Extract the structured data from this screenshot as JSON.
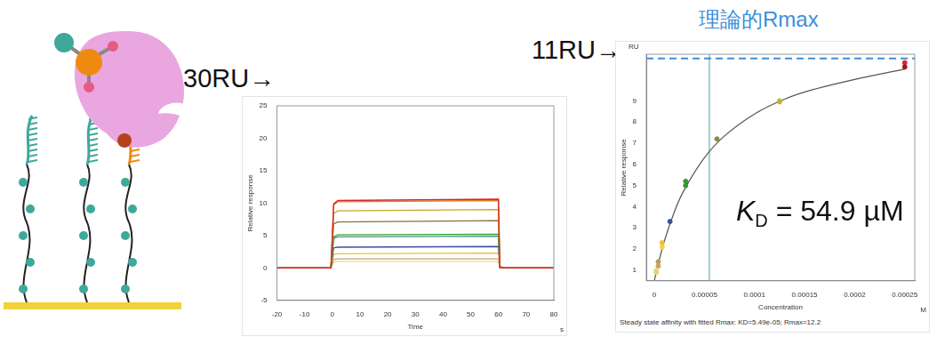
{
  "annotations": {
    "ligand_level": "30RU→",
    "rmax_arrow": "11RU→",
    "rmax_label": "理論的Rmax",
    "kd": {
      "symbol": "K",
      "subscript": "D",
      "text": " = 54.9 µM"
    }
  },
  "chart_data": [
    {
      "type": "line",
      "x_label": "Time",
      "x_unit": "s",
      "y_label": "Relative response",
      "xlim": [
        -20,
        80
      ],
      "xticks": [
        -20,
        -10,
        0,
        10,
        20,
        30,
        40,
        50,
        60,
        70,
        80
      ],
      "ylim": [
        -5,
        25
      ],
      "yticks": [
        -5,
        0,
        5,
        10,
        15,
        20,
        25
      ],
      "grid": false,
      "x": [
        -20,
        -0.5,
        0.5,
        2,
        60,
        60.5,
        62,
        80
      ],
      "series": [
        {
          "color": "#d62728",
          "values": [
            0,
            0,
            9.9,
            10.4,
            10.6,
            0.2,
            0,
            0
          ]
        },
        {
          "color": "#e07b20",
          "values": [
            0,
            0,
            9.7,
            10.2,
            10.4,
            0.2,
            0,
            0
          ]
        },
        {
          "color": "#c9a227",
          "values": [
            0,
            0,
            8.4,
            8.8,
            9.0,
            0.2,
            0,
            0
          ]
        },
        {
          "color": "#8c6d3f",
          "values": [
            0,
            0,
            6.8,
            7.1,
            7.3,
            0.1,
            0,
            0
          ]
        },
        {
          "color": "#2ca02c",
          "values": [
            0,
            0,
            4.8,
            5.1,
            5.2,
            0.1,
            0,
            0
          ]
        },
        {
          "color": "#4a8f7a",
          "values": [
            0,
            0,
            4.6,
            4.8,
            4.9,
            0.1,
            0,
            0
          ]
        },
        {
          "color": "#3b4fa0",
          "values": [
            0,
            0,
            3.1,
            3.2,
            3.3,
            0.1,
            0,
            0
          ]
        },
        {
          "color": "#e8c040",
          "values": [
            0,
            0,
            2.1,
            2.2,
            2.3,
            0,
            0,
            0
          ]
        },
        {
          "color": "#c8a070",
          "values": [
            0,
            0,
            1.3,
            1.4,
            1.4,
            0,
            0,
            0
          ]
        },
        {
          "color": "#f0d890",
          "values": [
            0,
            0,
            0.9,
            1.0,
            1.0,
            0,
            0,
            0
          ]
        }
      ]
    },
    {
      "type": "scatter",
      "x_label": "Concentration",
      "x_unit": "M",
      "y_label": "Relative response",
      "y_unit": "RU",
      "xlim": [
        -8e-06,
        0.00026
      ],
      "xticks": [
        0,
        5e-05,
        0.0001,
        0.00015,
        0.0002,
        0.00025
      ],
      "ylim": [
        0.5,
        11.2
      ],
      "yticks": [
        1,
        2,
        3,
        4,
        5,
        6,
        7,
        8,
        9
      ],
      "grid": false,
      "series": [
        {
          "type": "scatter",
          "marker": "circle",
          "x": [
            0.00025,
            0.00025,
            0.000125,
            0.000125,
            6.25e-05,
            3.125e-05,
            3.125e-05,
            1.56e-05,
            7.8e-06,
            7.8e-06,
            3.9e-06,
            3.9e-06,
            1.95e-06,
            1.95e-06
          ],
          "values": [
            10.8,
            10.6,
            9.0,
            8.95,
            7.2,
            5.2,
            5.0,
            3.3,
            2.3,
            2.1,
            1.4,
            1.2,
            1.0,
            0.9
          ],
          "colors": [
            "#d62728",
            "#a01818",
            "#b8c430",
            "#c9b030",
            "#8c8a3f",
            "#2ca02c",
            "#3a9040",
            "#3b4fa0",
            "#e8c040",
            "#f0d050",
            "#b0a050",
            "#c8a070",
            "#f0d890",
            "#e8d070"
          ]
        },
        {
          "type": "line",
          "color": "#555555",
          "x": [
            0,
            2e-06,
            1e-05,
            2e-05,
            3e-05,
            5e-05,
            7e-05,
            0.0001,
            0.00013,
            0.00016,
            0.0002,
            0.00025
          ],
          "values": [
            0.5,
            0.93,
            2.38,
            3.76,
            4.81,
            6.31,
            7.34,
            8.38,
            9.08,
            9.55,
            10.01,
            10.5
          ]
        }
      ],
      "rmax_line": 11,
      "rmax_color": "#3b8fd9",
      "kd_line": 5.49e-05,
      "kd_color": "#4aa0a8",
      "footer": "Steady state affinity with fitted Rmax: KD=5.49e-05; Rmax=12.2"
    }
  ]
}
